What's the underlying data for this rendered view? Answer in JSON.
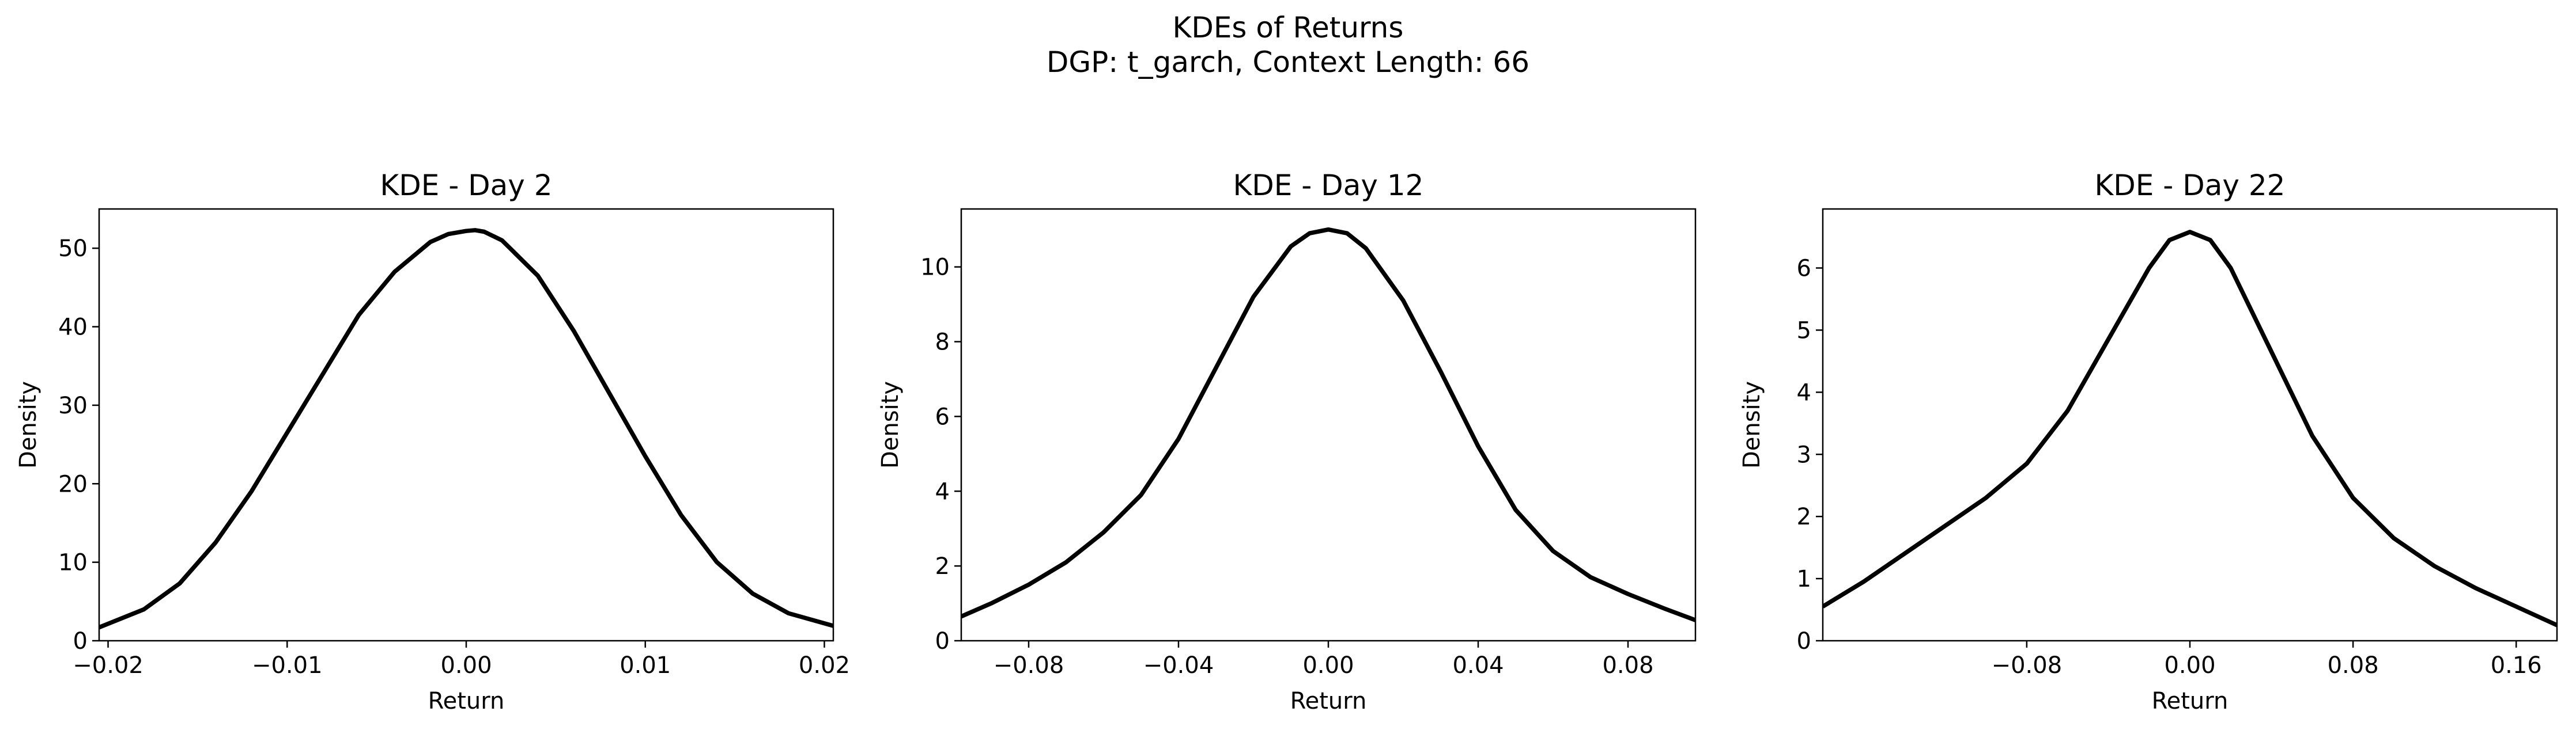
{
  "figure": {
    "suptitle": "KDEs of Returns",
    "subtitle": "DGP: t_garch, Context Length: 66"
  },
  "chart_data": [
    {
      "type": "line",
      "title": "KDE - Day 2",
      "xlabel": "Return",
      "ylabel": "Density",
      "xlim": [
        -0.0205,
        0.0205
      ],
      "ylim": [
        0,
        55
      ],
      "xticks": [
        -0.02,
        -0.01,
        0.0,
        0.01,
        0.02
      ],
      "xtick_labels": [
        "−0.02",
        "−0.01",
        "0.00",
        "0.01",
        "0.02"
      ],
      "yticks": [
        0,
        10,
        20,
        30,
        40,
        50
      ],
      "ytick_labels": [
        "0",
        "10",
        "20",
        "30",
        "40",
        "50"
      ],
      "grid": false,
      "series": [
        {
          "color": "#000000",
          "x": [
            -0.0205,
            -0.018,
            -0.016,
            -0.014,
            -0.012,
            -0.01,
            -0.008,
            -0.006,
            -0.004,
            -0.002,
            -0.001,
            0.0,
            0.0005,
            0.001,
            0.002,
            0.004,
            0.006,
            0.008,
            0.01,
            0.012,
            0.014,
            0.016,
            0.018,
            0.0205
          ],
          "y": [
            1.7,
            4.0,
            7.3,
            12.5,
            19.0,
            26.5,
            34.0,
            41.5,
            47.0,
            50.8,
            51.8,
            52.2,
            52.3,
            52.1,
            51.0,
            46.5,
            39.5,
            31.5,
            23.5,
            16.0,
            10.0,
            6.0,
            3.5,
            1.9
          ]
        }
      ]
    },
    {
      "type": "line",
      "title": "KDE - Day 12",
      "xlabel": "Return",
      "ylabel": "Density",
      "xlim": [
        -0.098,
        0.098
      ],
      "ylim": [
        0,
        11.55
      ],
      "xticks": [
        -0.08,
        -0.04,
        0.0,
        0.04,
        0.08
      ],
      "xtick_labels": [
        "−0.08",
        "−0.04",
        "0.00",
        "0.04",
        "0.08"
      ],
      "yticks": [
        0,
        2,
        4,
        6,
        8,
        10
      ],
      "ytick_labels": [
        "0",
        "2",
        "4",
        "6",
        "8",
        "10"
      ],
      "grid": false,
      "series": [
        {
          "color": "#000000",
          "x": [
            -0.098,
            -0.09,
            -0.08,
            -0.07,
            -0.06,
            -0.05,
            -0.04,
            -0.03,
            -0.02,
            -0.01,
            -0.005,
            0.0,
            0.005,
            0.01,
            0.02,
            0.03,
            0.04,
            0.05,
            0.06,
            0.07,
            0.08,
            0.09,
            0.098
          ],
          "y": [
            0.65,
            1.0,
            1.5,
            2.1,
            2.9,
            3.9,
            5.4,
            7.3,
            9.2,
            10.55,
            10.9,
            11.0,
            10.9,
            10.5,
            9.1,
            7.2,
            5.2,
            3.5,
            2.4,
            1.7,
            1.25,
            0.85,
            0.55
          ]
        }
      ]
    },
    {
      "type": "line",
      "title": "KDE - Day 22",
      "xlabel": "Return",
      "ylabel": "Density",
      "xlim": [
        -0.18,
        0.18
      ],
      "ylim": [
        0,
        6.95
      ],
      "xticks": [
        -0.08,
        0.0,
        0.08,
        0.16
      ],
      "xtick_labels": [
        "−0.08",
        "0.00",
        "0.08",
        "0.16"
      ],
      "yticks": [
        0,
        1,
        2,
        3,
        4,
        5,
        6
      ],
      "ytick_labels": [
        "0",
        "1",
        "2",
        "3",
        "4",
        "5",
        "6"
      ],
      "grid": false,
      "series": [
        {
          "color": "#000000",
          "x": [
            -0.18,
            -0.16,
            -0.14,
            -0.12,
            -0.1,
            -0.08,
            -0.06,
            -0.04,
            -0.02,
            -0.01,
            0.0,
            0.01,
            0.02,
            0.04,
            0.06,
            0.08,
            0.1,
            0.12,
            0.14,
            0.16,
            0.18
          ],
          "y": [
            0.55,
            0.95,
            1.4,
            1.85,
            2.3,
            2.85,
            3.7,
            4.85,
            6.0,
            6.45,
            6.58,
            6.45,
            6.0,
            4.65,
            3.3,
            2.3,
            1.65,
            1.2,
            0.85,
            0.55,
            0.25
          ]
        }
      ]
    }
  ]
}
